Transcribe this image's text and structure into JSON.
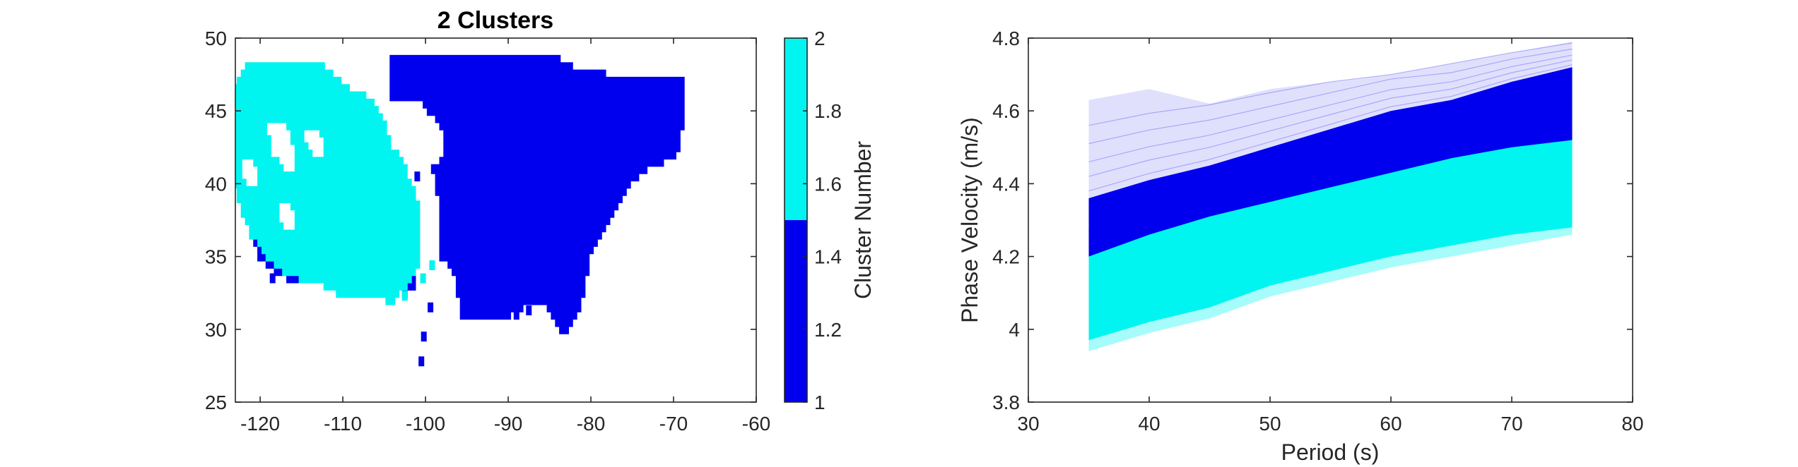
{
  "chart_data": [
    {
      "type": "scatter",
      "title": "2 Clusters",
      "xlim": [
        -123,
        -60
      ],
      "ylim": [
        25,
        50
      ],
      "xticks": [
        -120,
        -110,
        -100,
        -90,
        -80,
        -70,
        -60
      ],
      "xtick_labels": [
        "-120",
        "-110",
        "-100",
        "-90",
        "-80",
        "-70",
        "-60"
      ],
      "yticks": [
        25,
        30,
        35,
        40,
        45,
        50
      ],
      "ytick_labels": [
        "25",
        "30",
        "35",
        "40",
        "45",
        "50"
      ],
      "grid": false,
      "colors": {
        "cluster_1": "#0000ee",
        "cluster_2": "#00f5f0"
      },
      "clusters": [
        {
          "value": 1,
          "regions": [
            {
              "lon": [
                -118,
                -104,
                -104,
                -101,
                -98,
                -97.5,
                -99,
                -98,
                -98,
                -96.5,
                -95.5,
                -91,
                -88,
                -85.5,
                -83.5,
                -82,
                -81,
                -80,
                -79,
                -77,
                -75,
                -73,
                -69.5,
                -68.5,
                -69,
                -72,
                -75,
                -78,
                -82,
                -85,
                -88,
                -90,
                -92,
                -94,
                -96,
                -98,
                -100,
                -102,
                -104,
                -107,
                -110,
                -113,
                -116,
                -118
              ],
              "lat": [
                49,
                49,
                46,
                46,
                44,
                42,
                41,
                38,
                35,
                34,
                31,
                30.5,
                31.5,
                32,
                29.5,
                30.5,
                32,
                35,
                36,
                38,
                40,
                41,
                42,
                45,
                47.5,
                47.5,
                47,
                47.5,
                48,
                49,
                49,
                49,
                49,
                49,
                49,
                49,
                49,
                49,
                49,
                49,
                49,
                49,
                49,
                49
              ]
            },
            {
              "lon": [
                -104,
                -103,
                -101.5,
                -101.3,
                -102,
                -102.5,
                -103,
                -104
              ],
              "lat": [
                36,
                36,
                35,
                33,
                32.5,
                32.5,
                34,
                36
              ]
            },
            {
              "lon": [
                -121,
                -119,
                -117,
                -116,
                -115,
                -113,
                -115,
                -118,
                -120,
                -121
              ],
              "lat": [
                37,
                36,
                35.3,
                34.5,
                33.5,
                33.2,
                33,
                33.8,
                35,
                37
              ]
            }
          ],
          "outliers": [
            [
              -100.5,
              27.8
            ],
            [
              -100.2,
              29.5
            ],
            [
              -99.4,
              31.5
            ],
            [
              -89,
              31
            ],
            [
              -87.5,
              31.3
            ],
            [
              -101,
              40.5
            ],
            [
              -102,
              37
            ],
            [
              -123,
              45
            ],
            [
              -123,
              43
            ],
            [
              -118.5,
              33.5
            ],
            [
              -104.5,
              34.5
            ]
          ]
        },
        {
          "value": 2,
          "regions": [
            {
              "lon": [
                -123,
                -121.5,
                -118,
                -112,
                -109,
                -107,
                -105.5,
                -104,
                -103,
                -102,
                -101,
                -100.5,
                -100.8,
                -100.5,
                -101.5,
                -102,
                -102.8,
                -103.5,
                -104.5,
                -106,
                -108,
                -110,
                -112,
                -115,
                -116.5,
                -119,
                -121,
                -122,
                -123,
                -123
              ],
              "lat": [
                46.5,
                48,
                48.5,
                48,
                46.5,
                46,
                45,
                42.5,
                41.8,
                40.5,
                39,
                37,
                36,
                34.5,
                33.5,
                33,
                32.8,
                32,
                32,
                32.5,
                32.2,
                32.2,
                33,
                33.5,
                33.8,
                34.8,
                36.5,
                38,
                40,
                46.5
              ]
            }
          ],
          "holes": [
            {
              "lon": [
                -119.5,
                -117,
                -116,
                -115.5,
                -116.5,
                -118.5,
                -119.5
              ],
              "lat": [
                44.5,
                44.5,
                43,
                41,
                40.5,
                42,
                44.5
              ]
            },
            {
              "lon": [
                -122,
                -120.5,
                -120,
                -121,
                -122
              ],
              "lat": [
                42,
                41.5,
                40,
                39.5,
                40.5
              ]
            },
            {
              "lon": [
                -114.5,
                -112.5,
                -112,
                -113.5,
                -114.5
              ],
              "lat": [
                44,
                43.5,
                42,
                41.5,
                43
              ]
            },
            {
              "lon": [
                -117.5,
                -116,
                -115.5,
                -116.5,
                -117.5
              ],
              "lat": [
                39,
                38.5,
                37,
                36.5,
                37.5
              ]
            }
          ],
          "outliers": [
            [
              -102.5,
              32.3
            ],
            [
              -100.3,
              33.5
            ],
            [
              -99.2,
              34.4
            ]
          ]
        }
      ]
    },
    {
      "type": "colorbar",
      "label": "Cluster Number",
      "limits": [
        1,
        2
      ],
      "ticks": [
        1,
        1.2,
        1.4,
        1.6,
        1.8,
        2
      ],
      "tick_labels": [
        "1",
        "1.2",
        "1.4",
        "1.6",
        "1.8",
        "2"
      ],
      "bands": [
        {
          "from": 1,
          "to": 1.5,
          "color": "#0000ee"
        },
        {
          "from": 1.5,
          "to": 2,
          "color": "#00f5f0"
        }
      ]
    },
    {
      "type": "line",
      "title": "",
      "xlabel": "Period (s)",
      "ylabel": "Phase Velocity (m/s)",
      "xlim": [
        30,
        80
      ],
      "ylim": [
        3.8,
        4.8
      ],
      "xticks": [
        30,
        40,
        50,
        60,
        70,
        80
      ],
      "xtick_labels": [
        "30",
        "40",
        "50",
        "60",
        "70",
        "80"
      ],
      "yticks": [
        3.8,
        4,
        4.2,
        4.4,
        4.6,
        4.8
      ],
      "ytick_labels": [
        "3.8",
        "4",
        "4.2",
        "4.4",
        "4.6",
        "4.8"
      ],
      "grid": false,
      "x": [
        35,
        40,
        45,
        50,
        55,
        60,
        65,
        70,
        75
      ],
      "series": [
        {
          "color": "#0000ee",
          "upper": [
            4.63,
            4.66,
            4.62,
            4.66,
            4.68,
            4.7,
            4.73,
            4.76,
            4.79
          ],
          "core_high": [
            4.36,
            4.41,
            4.45,
            4.5,
            4.55,
            4.6,
            4.63,
            4.68,
            4.72
          ],
          "core_low": [
            4.2,
            4.26,
            4.31,
            4.35,
            4.39,
            4.43,
            4.47,
            4.5,
            4.52
          ],
          "median": [
            4.27,
            4.33,
            4.38,
            4.43,
            4.47,
            4.52,
            4.55,
            4.59,
            4.62
          ]
        },
        {
          "color": "#00f5f0",
          "core_high": [
            4.24,
            4.28,
            4.32,
            4.36,
            4.4,
            4.45,
            4.48,
            4.51,
            4.55
          ],
          "core_low": [
            3.97,
            4.02,
            4.06,
            4.12,
            4.16,
            4.2,
            4.23,
            4.26,
            4.28
          ],
          "lower": [
            3.94,
            3.99,
            4.03,
            4.09,
            4.13,
            4.17,
            4.2,
            4.23,
            4.26
          ],
          "median": [
            4.1,
            4.15,
            4.2,
            4.24,
            4.28,
            4.32,
            4.36,
            4.39,
            4.42
          ]
        }
      ]
    }
  ]
}
